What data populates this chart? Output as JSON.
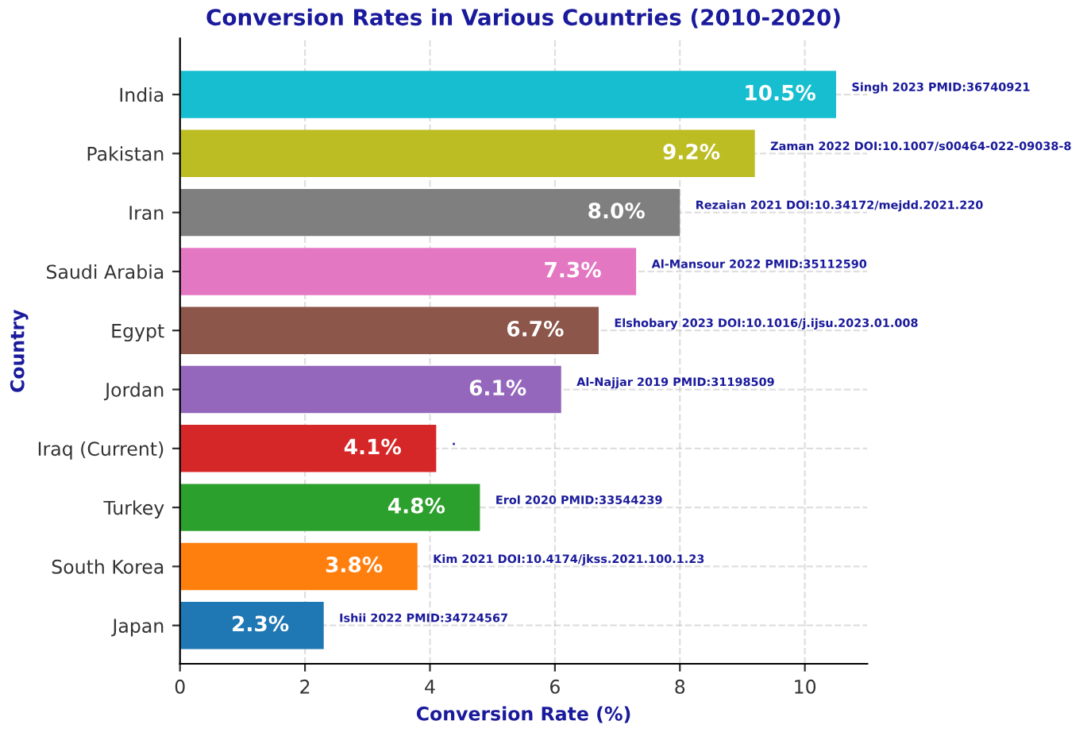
{
  "chart_data": {
    "type": "bar",
    "orientation": "horizontal",
    "title": "Conversion Rates in Various Countries (2010-2020)",
    "xlabel": "Conversion Rate (%)",
    "ylabel": "Country",
    "categories": [
      "India",
      "Pakistan",
      "Iran",
      "Saudi Arabia",
      "Egypt",
      "Jordan",
      "Iraq (Current)",
      "Turkey",
      "South Korea",
      "Japan"
    ],
    "values": [
      10.5,
      9.2,
      8.0,
      7.3,
      6.7,
      6.1,
      4.1,
      4.8,
      3.8,
      2.3
    ],
    "colors": [
      "#17becf",
      "#bcbd22",
      "#7f7f7f",
      "#e377c2",
      "#8c564b",
      "#9467bd",
      "#d62728",
      "#2ca02c",
      "#ff7f0e",
      "#1f77b4"
    ],
    "value_labels": [
      "10.5%",
      "9.2%",
      "8.0%",
      "7.3%",
      "6.7%",
      "6.1%",
      "4.1%",
      "4.8%",
      "3.8%",
      "2.3%"
    ],
    "annotations": [
      {
        "text": "Singh 2023 PMID:36740921",
        "x": 10.5,
        "y": "India"
      },
      {
        "text": "Zaman 2022 DOI:10.1007/s00464-022-09038-8",
        "x": 9.2,
        "y": "Pakistan"
      },
      {
        "text": "Rezaian 2021 DOI:10.34172/mejdd.2021.220",
        "x": 8.0,
        "y": "Iran"
      },
      {
        "text": "Al-Mansour 2022 PMID:35112590",
        "x": 7.3,
        "y": "Saudi Arabia"
      },
      {
        "text": "Elshobary 2023 DOI:10.1016/j.ijsu.2023.01.008",
        "x": 6.7,
        "y": "Egypt"
      },
      {
        "text": "Al-Najjar 2019 PMID:31198509",
        "x": 6.1,
        "y": "Jordan"
      },
      {
        "text": ".",
        "x": 4.1,
        "y": "Iraq (Current)"
      },
      {
        "text": "Erol 2020 PMID:33544239",
        "x": 4.8,
        "y": "Turkey"
      },
      {
        "text": "Kim 2021 DOI:10.4174/jkss.2021.100.1.23",
        "x": 3.8,
        "y": "South Korea"
      },
      {
        "text": "Ishii 2022 PMID:34724567",
        "x": 2.3,
        "y": "Japan"
      }
    ],
    "xlim": [
      0,
      11
    ],
    "xticks": [
      0,
      2,
      4,
      6,
      8,
      10
    ],
    "grid": true
  }
}
